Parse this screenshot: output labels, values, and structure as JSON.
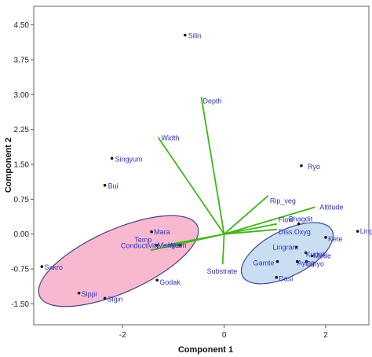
{
  "chart_data": {
    "type": "scatter",
    "title": "",
    "xlabel": "Component 1",
    "ylabel": "Component 2",
    "xlim": [
      -3.75,
      2.85
    ],
    "ylim": [
      -1.95,
      4.9
    ],
    "xticks": [
      -2,
      0,
      2
    ],
    "xtick_labels": [
      "-2",
      "0",
      "2"
    ],
    "yticks": [
      -1.5,
      -0.75,
      0.0,
      0.75,
      1.5,
      2.25,
      3.0,
      3.75,
      4.5
    ],
    "ytick_labels": [
      "-1.50",
      "-0.75",
      "0.00",
      "0.75",
      "1.50",
      "2.25",
      "3.00",
      "3.75",
      "4.50"
    ],
    "grid": false,
    "points": [
      {
        "label": "Silin",
        "x": -0.77,
        "y": 4.28
      },
      {
        "label": "Singyum",
        "x": -2.21,
        "y": 1.63
      },
      {
        "label": "Bui",
        "x": -2.35,
        "y": 1.05
      },
      {
        "label": "Ryo",
        "x": 1.52,
        "y": 1.47
      },
      {
        "label": "Mara",
        "x": -1.43,
        "y": 0.05
      },
      {
        "label": "Temp",
        "x": -1.75,
        "y": -0.12
      },
      {
        "label": "Conductivity",
        "x": -2.02,
        "y": -0.25
      },
      {
        "label": "Menga",
        "x": -1.33,
        "y": -0.24
      },
      {
        "label": "Wuon",
        "x": -0.87,
        "y": -0.24
      },
      {
        "label": "Sakro",
        "x": -3.59,
        "y": -0.7
      },
      {
        "label": "Sippi",
        "x": -2.86,
        "y": -1.27
      },
      {
        "label": "Sigin",
        "x": -2.35,
        "y": -1.38
      },
      {
        "label": "Godak",
        "x": -1.32,
        "y": -0.99
      },
      {
        "label": "Bhagdit",
        "x": 1.47,
        "y": 0.22
      },
      {
        "label": "Kete",
        "x": 2.0,
        "y": -0.07
      },
      {
        "label": "Lingde",
        "x": 2.63,
        "y": 0.06
      },
      {
        "label": "Lingram",
        "x": 1.42,
        "y": -0.28
      },
      {
        "label": "Kudok",
        "x": 1.61,
        "y": -0.4
      },
      {
        "label": "Mede",
        "x": 1.73,
        "y": -0.47
      },
      {
        "label": "Gamte",
        "x": 1.05,
        "y": -0.59
      },
      {
        "label": "Aying",
        "x": 1.44,
        "y": -0.59
      },
      {
        "label": "Ginyo",
        "x": 1.62,
        "y": -0.59
      },
      {
        "label": "Dasi",
        "x": 1.03,
        "y": -0.93
      }
    ],
    "vectors": [
      {
        "label": "Depth",
        "x": -0.45,
        "y": 2.95
      },
      {
        "label": "Width",
        "x": -1.3,
        "y": 2.08
      },
      {
        "label": "Rip_veg",
        "x": 0.87,
        "y": 0.83
      },
      {
        "label": "Altitude",
        "x": 1.79,
        "y": 0.58
      },
      {
        "label": "Flow",
        "x": 1.04,
        "y": 0.22
      },
      {
        "label": "Diss.Oxyg",
        "x": 1.04,
        "y": 0.1
      },
      {
        "label": "Substrate",
        "x": -0.03,
        "y": -0.65
      },
      {
        "label": "Temp",
        "x": -1.2,
        "y": -0.25
      },
      {
        "label": "Conductivity",
        "x": -1.45,
        "y": -0.35
      }
    ],
    "groups": [
      {
        "members": [
          "Sakro",
          "Sippi",
          "Sigin",
          "Godak",
          "Mara",
          "Menga",
          "Wuon",
          "Temp",
          "Conductivity"
        ],
        "fill": "#f8b8cf",
        "stroke": "#4a3f86"
      },
      {
        "members": [
          "Bhagdit",
          "Kete",
          "Lingde",
          "Lingram",
          "Kudok",
          "Mede",
          "Gamte",
          "Aying",
          "Ginyo",
          "Dasi"
        ],
        "fill": "#c9def2",
        "stroke": "#3a4b9c"
      }
    ],
    "colors": {
      "vector": "#3fb514",
      "label": "#2f35b8",
      "point": "#111111",
      "axis": "#555555"
    }
  }
}
